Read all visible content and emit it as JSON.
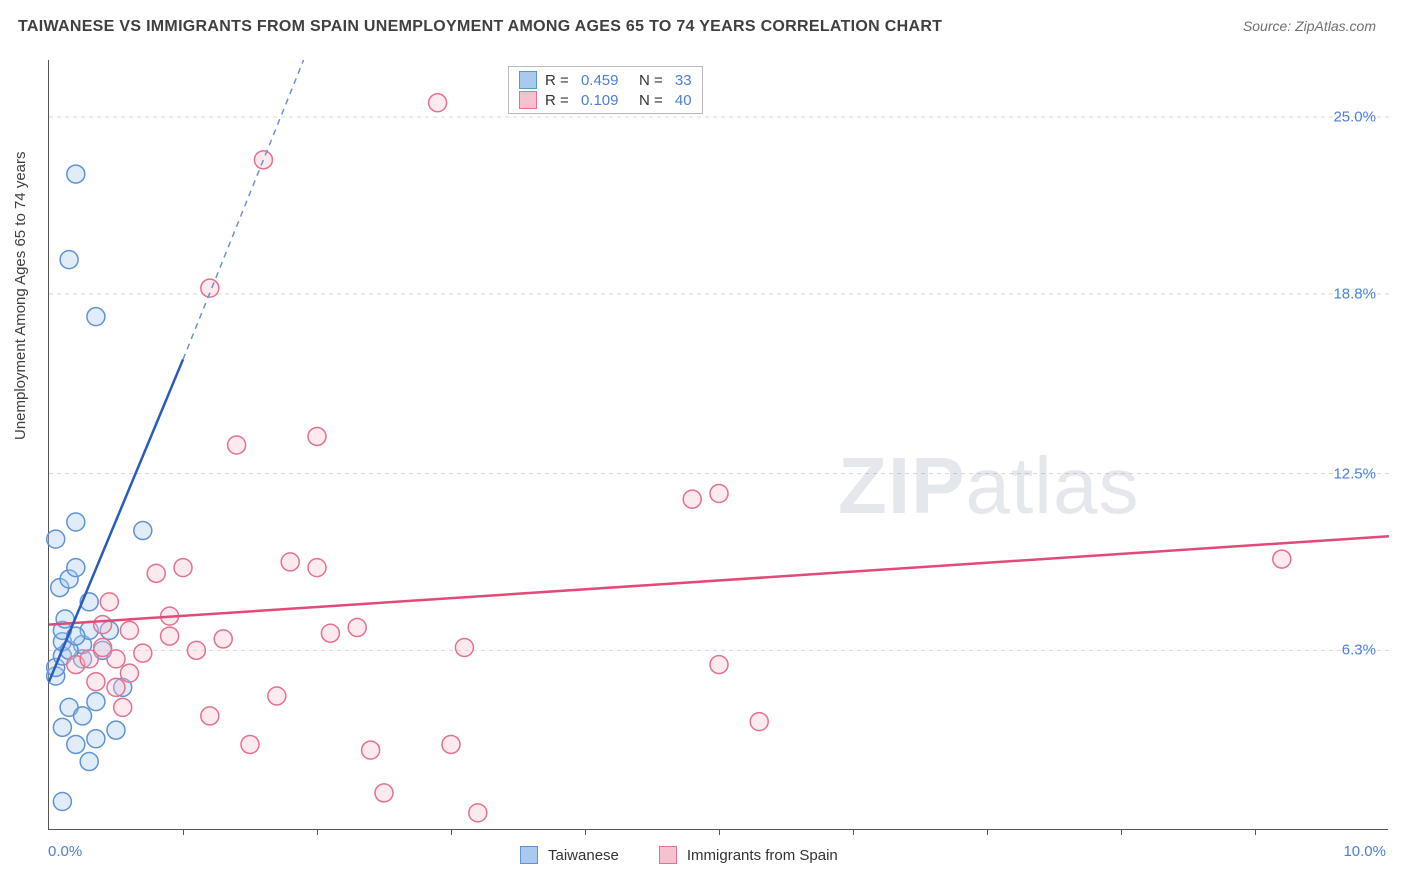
{
  "header": {
    "title": "TAIWANESE VS IMMIGRANTS FROM SPAIN UNEMPLOYMENT AMONG AGES 65 TO 74 YEARS CORRELATION CHART",
    "source_label": "Source: ",
    "source_value": "ZipAtlas.com"
  },
  "chart": {
    "type": "scatter",
    "y_axis_label": "Unemployment Among Ages 65 to 74 years",
    "xlim": [
      0,
      10
    ],
    "ylim": [
      0,
      27
    ],
    "x_ticks": {
      "start_label": "0.0%",
      "end_label": "10.0%",
      "minor_positions_pct": [
        1,
        2,
        3,
        4,
        5,
        6,
        7,
        8,
        9
      ]
    },
    "y_gridlines": [
      6.3,
      12.5,
      18.8,
      25.0
    ],
    "y_tick_labels": [
      "6.3%",
      "12.5%",
      "18.8%",
      "25.0%"
    ],
    "grid_color": "#d8d8d8",
    "background_color": "#ffffff",
    "marker_radius": 9,
    "marker_stroke_width": 1.5,
    "marker_fill_opacity": 0.35,
    "series": [
      {
        "name": "Taiwanese",
        "color_fill": "#a9c9ef",
        "color_stroke": "#5e93d6",
        "trend_color": "#2a5bb8",
        "trend_dash_color": "#6b92d4",
        "R": "0.459",
        "N": "33",
        "trend": {
          "x1": 0.0,
          "y1": 5.2,
          "x2": 1.0,
          "y2": 16.5,
          "dash_x2": 1.9,
          "dash_y2": 27.0
        },
        "points": [
          [
            0.05,
            5.4
          ],
          [
            0.05,
            5.7
          ],
          [
            0.1,
            6.1
          ],
          [
            0.1,
            6.6
          ],
          [
            0.1,
            7.0
          ],
          [
            0.12,
            7.4
          ],
          [
            0.08,
            8.5
          ],
          [
            0.15,
            8.8
          ],
          [
            0.2,
            9.2
          ],
          [
            0.05,
            10.2
          ],
          [
            0.2,
            10.8
          ],
          [
            0.25,
            6.0
          ],
          [
            0.25,
            6.5
          ],
          [
            0.3,
            7.0
          ],
          [
            0.15,
            4.3
          ],
          [
            0.1,
            3.6
          ],
          [
            0.35,
            3.2
          ],
          [
            0.2,
            3.0
          ],
          [
            0.3,
            2.4
          ],
          [
            0.25,
            4.0
          ],
          [
            0.35,
            4.5
          ],
          [
            0.45,
            7.0
          ],
          [
            0.55,
            5.0
          ],
          [
            0.7,
            10.5
          ],
          [
            0.35,
            18.0
          ],
          [
            0.2,
            23.0
          ],
          [
            0.15,
            20.0
          ],
          [
            0.1,
            1.0
          ],
          [
            0.15,
            6.3
          ],
          [
            0.2,
            6.8
          ],
          [
            0.4,
            6.3
          ],
          [
            0.5,
            3.5
          ],
          [
            0.3,
            8.0
          ]
        ]
      },
      {
        "name": "Immigrants from Spain",
        "color_fill": "#f6c2cf",
        "color_stroke": "#e6718e",
        "trend_color": "#e24a77",
        "R": "0.109",
        "N": "40",
        "trend": {
          "x1": 0.0,
          "y1": 7.2,
          "x2": 10.0,
          "y2": 10.3
        },
        "points": [
          [
            0.2,
            5.8
          ],
          [
            0.3,
            6.0
          ],
          [
            0.4,
            6.4
          ],
          [
            0.5,
            6.0
          ],
          [
            0.6,
            5.5
          ],
          [
            0.7,
            6.2
          ],
          [
            0.8,
            9.0
          ],
          [
            0.9,
            6.8
          ],
          [
            1.0,
            9.2
          ],
          [
            1.1,
            6.3
          ],
          [
            1.2,
            4.0
          ],
          [
            1.3,
            6.7
          ],
          [
            1.5,
            3.0
          ],
          [
            1.7,
            4.7
          ],
          [
            1.6,
            23.5
          ],
          [
            1.2,
            19.0
          ],
          [
            1.4,
            13.5
          ],
          [
            1.8,
            9.4
          ],
          [
            2.0,
            9.2
          ],
          [
            2.3,
            7.1
          ],
          [
            2.4,
            2.8
          ],
          [
            2.5,
            1.3
          ],
          [
            2.9,
            25.5
          ],
          [
            3.1,
            6.4
          ],
          [
            3.0,
            3.0
          ],
          [
            3.2,
            0.6
          ],
          [
            2.1,
            6.9
          ],
          [
            5.0,
            5.8
          ],
          [
            4.8,
            11.6
          ],
          [
            5.0,
            11.8
          ],
          [
            5.3,
            3.8
          ],
          [
            9.2,
            9.5
          ],
          [
            0.5,
            5.0
          ],
          [
            0.6,
            7.0
          ],
          [
            0.4,
            7.2
          ],
          [
            0.35,
            5.2
          ],
          [
            0.55,
            4.3
          ],
          [
            0.9,
            7.5
          ],
          [
            2.0,
            13.8
          ],
          [
            0.45,
            8.0
          ]
        ]
      }
    ],
    "watermark": {
      "part1": "ZIP",
      "part2": "atlas"
    }
  },
  "legends": {
    "bottom": [
      {
        "label": "Taiwanese",
        "fill": "#a9c9ef",
        "stroke": "#5e93d6"
      },
      {
        "label": "Immigrants from Spain",
        "fill": "#f6c2cf",
        "stroke": "#e6718e"
      }
    ]
  }
}
